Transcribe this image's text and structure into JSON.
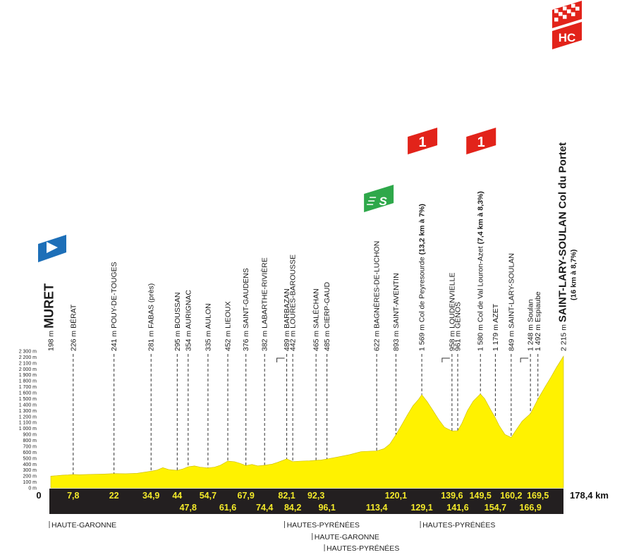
{
  "chart_data": {
    "type": "area",
    "title": "",
    "xlabel": "",
    "ylabel": "",
    "x_unit_label": "178,4 km",
    "x_start_label": "0",
    "xlim": [
      0,
      178.4
    ],
    "ylim": [
      0,
      2300
    ],
    "y_ticks": [
      "0 m",
      "100 m",
      "200 m",
      "300 m",
      "400 m",
      "500 m",
      "600 m",
      "700 m",
      "800 m",
      "900 m",
      "1 000 m",
      "1 100 m",
      "1 200 m",
      "1 300 m",
      "1 400 m",
      "1 500 m",
      "1 600 m",
      "1 700 m",
      "1 800 m",
      "1 900 m",
      "2 000 m",
      "2 100 m",
      "2 200 m",
      "2 300 m"
    ],
    "y_tick_values": [
      0,
      100,
      200,
      300,
      400,
      500,
      600,
      700,
      800,
      900,
      1000,
      1100,
      1200,
      1300,
      1400,
      1500,
      1600,
      1700,
      1800,
      1900,
      2000,
      2100,
      2200,
      2300
    ],
    "fill_color": "#fff200",
    "band_color": "#231f20",
    "km_text_color": "#f4ea2a",
    "profile": [
      [
        0,
        198
      ],
      [
        2,
        205
      ],
      [
        4,
        215
      ],
      [
        6,
        218
      ],
      [
        7.8,
        226
      ],
      [
        10,
        222
      ],
      [
        14,
        228
      ],
      [
        18,
        232
      ],
      [
        22,
        241
      ],
      [
        26,
        238
      ],
      [
        30,
        245
      ],
      [
        34.9,
        281
      ],
      [
        37,
        300
      ],
      [
        39,
        340
      ],
      [
        41,
        310
      ],
      [
        44,
        295
      ],
      [
        46,
        320
      ],
      [
        47.8,
        354
      ],
      [
        50,
        370
      ],
      [
        52,
        350
      ],
      [
        54.7,
        335
      ],
      [
        57,
        350
      ],
      [
        59,
        380
      ],
      [
        61.6,
        452
      ],
      [
        64,
        440
      ],
      [
        66,
        410
      ],
      [
        67.9,
        376
      ],
      [
        70,
        395
      ],
      [
        72,
        370
      ],
      [
        74.4,
        382
      ],
      [
        77,
        400
      ],
      [
        79,
        430
      ],
      [
        82.1,
        489
      ],
      [
        84.2,
        442
      ],
      [
        87,
        450
      ],
      [
        90,
        455
      ],
      [
        92.3,
        465
      ],
      [
        94,
        470
      ],
      [
        96.1,
        485
      ],
      [
        100,
        520
      ],
      [
        104,
        560
      ],
      [
        108,
        610
      ],
      [
        113.4,
        622
      ],
      [
        116,
        660
      ],
      [
        118,
        740
      ],
      [
        120.1,
        893
      ],
      [
        122,
        1050
      ],
      [
        124,
        1220
      ],
      [
        126,
        1380
      ],
      [
        128,
        1490
      ],
      [
        129.1,
        1569
      ],
      [
        131,
        1450
      ],
      [
        133,
        1300
      ],
      [
        135,
        1150
      ],
      [
        137,
        1020
      ],
      [
        139.6,
        958
      ],
      [
        141.6,
        961
      ],
      [
        143,
        1080
      ],
      [
        145,
        1300
      ],
      [
        147,
        1460
      ],
      [
        149.5,
        1580
      ],
      [
        151,
        1500
      ],
      [
        153,
        1320
      ],
      [
        154.7,
        1179
      ],
      [
        156,
        1050
      ],
      [
        158,
        900
      ],
      [
        160.2,
        849
      ],
      [
        162,
        980
      ],
      [
        164,
        1120
      ],
      [
        166.9,
        1248
      ],
      [
        168,
        1350
      ],
      [
        169.5,
        1492
      ],
      [
        172,
        1700
      ],
      [
        174,
        1860
      ],
      [
        176,
        2030
      ],
      [
        178.4,
        2215
      ]
    ],
    "km_marks": [
      {
        "km": 7.8,
        "label": "7,8",
        "row": "top"
      },
      {
        "km": 22,
        "label": "22",
        "row": "top"
      },
      {
        "km": 34.9,
        "label": "34,9",
        "row": "top"
      },
      {
        "km": 44,
        "label": "44",
        "row": "top"
      },
      {
        "km": 47.8,
        "label": "47,8",
        "row": "bottom"
      },
      {
        "km": 54.7,
        "label": "54,7",
        "row": "top"
      },
      {
        "km": 61.6,
        "label": "61,6",
        "row": "bottom"
      },
      {
        "km": 67.9,
        "label": "67,9",
        "row": "top"
      },
      {
        "km": 74.4,
        "label": "74,4",
        "row": "bottom"
      },
      {
        "km": 82.1,
        "label": "82,1",
        "row": "top"
      },
      {
        "km": 84.2,
        "label": "84,2",
        "row": "bottom"
      },
      {
        "km": 92.3,
        "label": "92,3",
        "row": "top"
      },
      {
        "km": 96.1,
        "label": "96,1",
        "row": "bottom"
      },
      {
        "km": 113.4,
        "label": "113,4",
        "row": "bottom"
      },
      {
        "km": 120.1,
        "label": "120,1",
        "row": "top"
      },
      {
        "km": 129.1,
        "label": "129,1",
        "row": "bottom"
      },
      {
        "km": 139.6,
        "label": "139,6",
        "row": "top"
      },
      {
        "km": 141.6,
        "label": "141,6",
        "row": "bottom"
      },
      {
        "km": 149.5,
        "label": "149,5",
        "row": "top"
      },
      {
        "km": 154.7,
        "label": "154,7",
        "row": "bottom"
      },
      {
        "km": 160.2,
        "label": "160,2",
        "row": "top"
      },
      {
        "km": 166.9,
        "label": "166,9",
        "row": "bottom"
      },
      {
        "km": 169.5,
        "label": "169,5",
        "row": "top"
      }
    ],
    "places": [
      {
        "km": 0,
        "alt": "198 m",
        "name": "MURET",
        "big": true
      },
      {
        "km": 7.8,
        "alt": "226 m",
        "name": "BÉRAT"
      },
      {
        "km": 22,
        "alt": "241 m",
        "name": "POUY-DE-TOUGES"
      },
      {
        "km": 34.9,
        "alt": "281 m",
        "name": "FABAS (près)"
      },
      {
        "km": 44,
        "alt": "295 m",
        "name": "BOUSSAN"
      },
      {
        "km": 47.8,
        "alt": "354 m",
        "name": "AURIGNAC"
      },
      {
        "km": 54.7,
        "alt": "335 m",
        "name": "AULON"
      },
      {
        "km": 61.6,
        "alt": "452 m",
        "name": "LIEOUX"
      },
      {
        "km": 67.9,
        "alt": "376 m",
        "name": "SAINT-GAUDENS"
      },
      {
        "km": 74.4,
        "alt": "382 m",
        "name": "LABARTHE-RIVIÈRE"
      },
      {
        "km": 82.1,
        "alt": "489 m",
        "name": "BARBAZAN",
        "bracket": true
      },
      {
        "km": 84.2,
        "alt": "442 m",
        "name": "LOURES-BAROUSSE"
      },
      {
        "km": 92.3,
        "alt": "465 m",
        "name": "SALÉCHAN"
      },
      {
        "km": 96.1,
        "alt": "485 m",
        "name": "CIERP-GAUD"
      },
      {
        "km": 113.4,
        "alt": "622 m",
        "name": "BAGNÈRES-DE-LUCHON"
      },
      {
        "km": 120.1,
        "alt": "893 m",
        "name": "SAINT-AVENTIN"
      },
      {
        "km": 129.1,
        "alt": "1 569 m",
        "name": "Col de Peyresourde",
        "suffix": "(13,2 km à 7%)"
      },
      {
        "km": 139.6,
        "alt": "958 m",
        "name": "LOUDENVIELLE",
        "bracket": true
      },
      {
        "km": 141.6,
        "alt": "961 m",
        "name": "GÉNOS"
      },
      {
        "km": 149.5,
        "alt": "1 580 m",
        "name": "Col de Val Louron-Azet",
        "suffix": "(7,4 km à 8,3%)"
      },
      {
        "km": 154.7,
        "alt": "1 179 m",
        "name": "AZET"
      },
      {
        "km": 160.2,
        "alt": "849 m",
        "name": "SAINT-LARY-SOULAN"
      },
      {
        "km": 166.9,
        "alt": "1 248 m",
        "name": "Soulan",
        "bracket": true
      },
      {
        "km": 169.5,
        "alt": "1 492 m",
        "name": "Espiaube"
      },
      {
        "km": 178.4,
        "alt": "2 215 m",
        "name": "SAINT-LARY-SOULAN Col du Portet",
        "big": true,
        "sub": "(16 km à 8,7%)"
      }
    ],
    "badges": [
      {
        "type": "start",
        "color": "#1d6fb8"
      },
      {
        "type": "sprint",
        "text": "S",
        "color": "#2ea84a"
      },
      {
        "type": "cat",
        "text": "1",
        "color": "#e2231a"
      },
      {
        "type": "cat",
        "text": "1",
        "color": "#e2231a"
      },
      {
        "type": "cat",
        "text": "HC",
        "color": "#e2231a"
      },
      {
        "type": "finish-flag",
        "color": "#e2231a"
      }
    ],
    "departments": [
      {
        "label": "HAUTE-GARONNE"
      },
      {
        "label": "HAUTES-PYRÉNÉES"
      },
      {
        "label": "HAUTE-GARONNE"
      },
      {
        "label": "HAUTES-PYRÉNÉES"
      },
      {
        "label": "HAUTES-PYRÉNÉES"
      }
    ]
  }
}
